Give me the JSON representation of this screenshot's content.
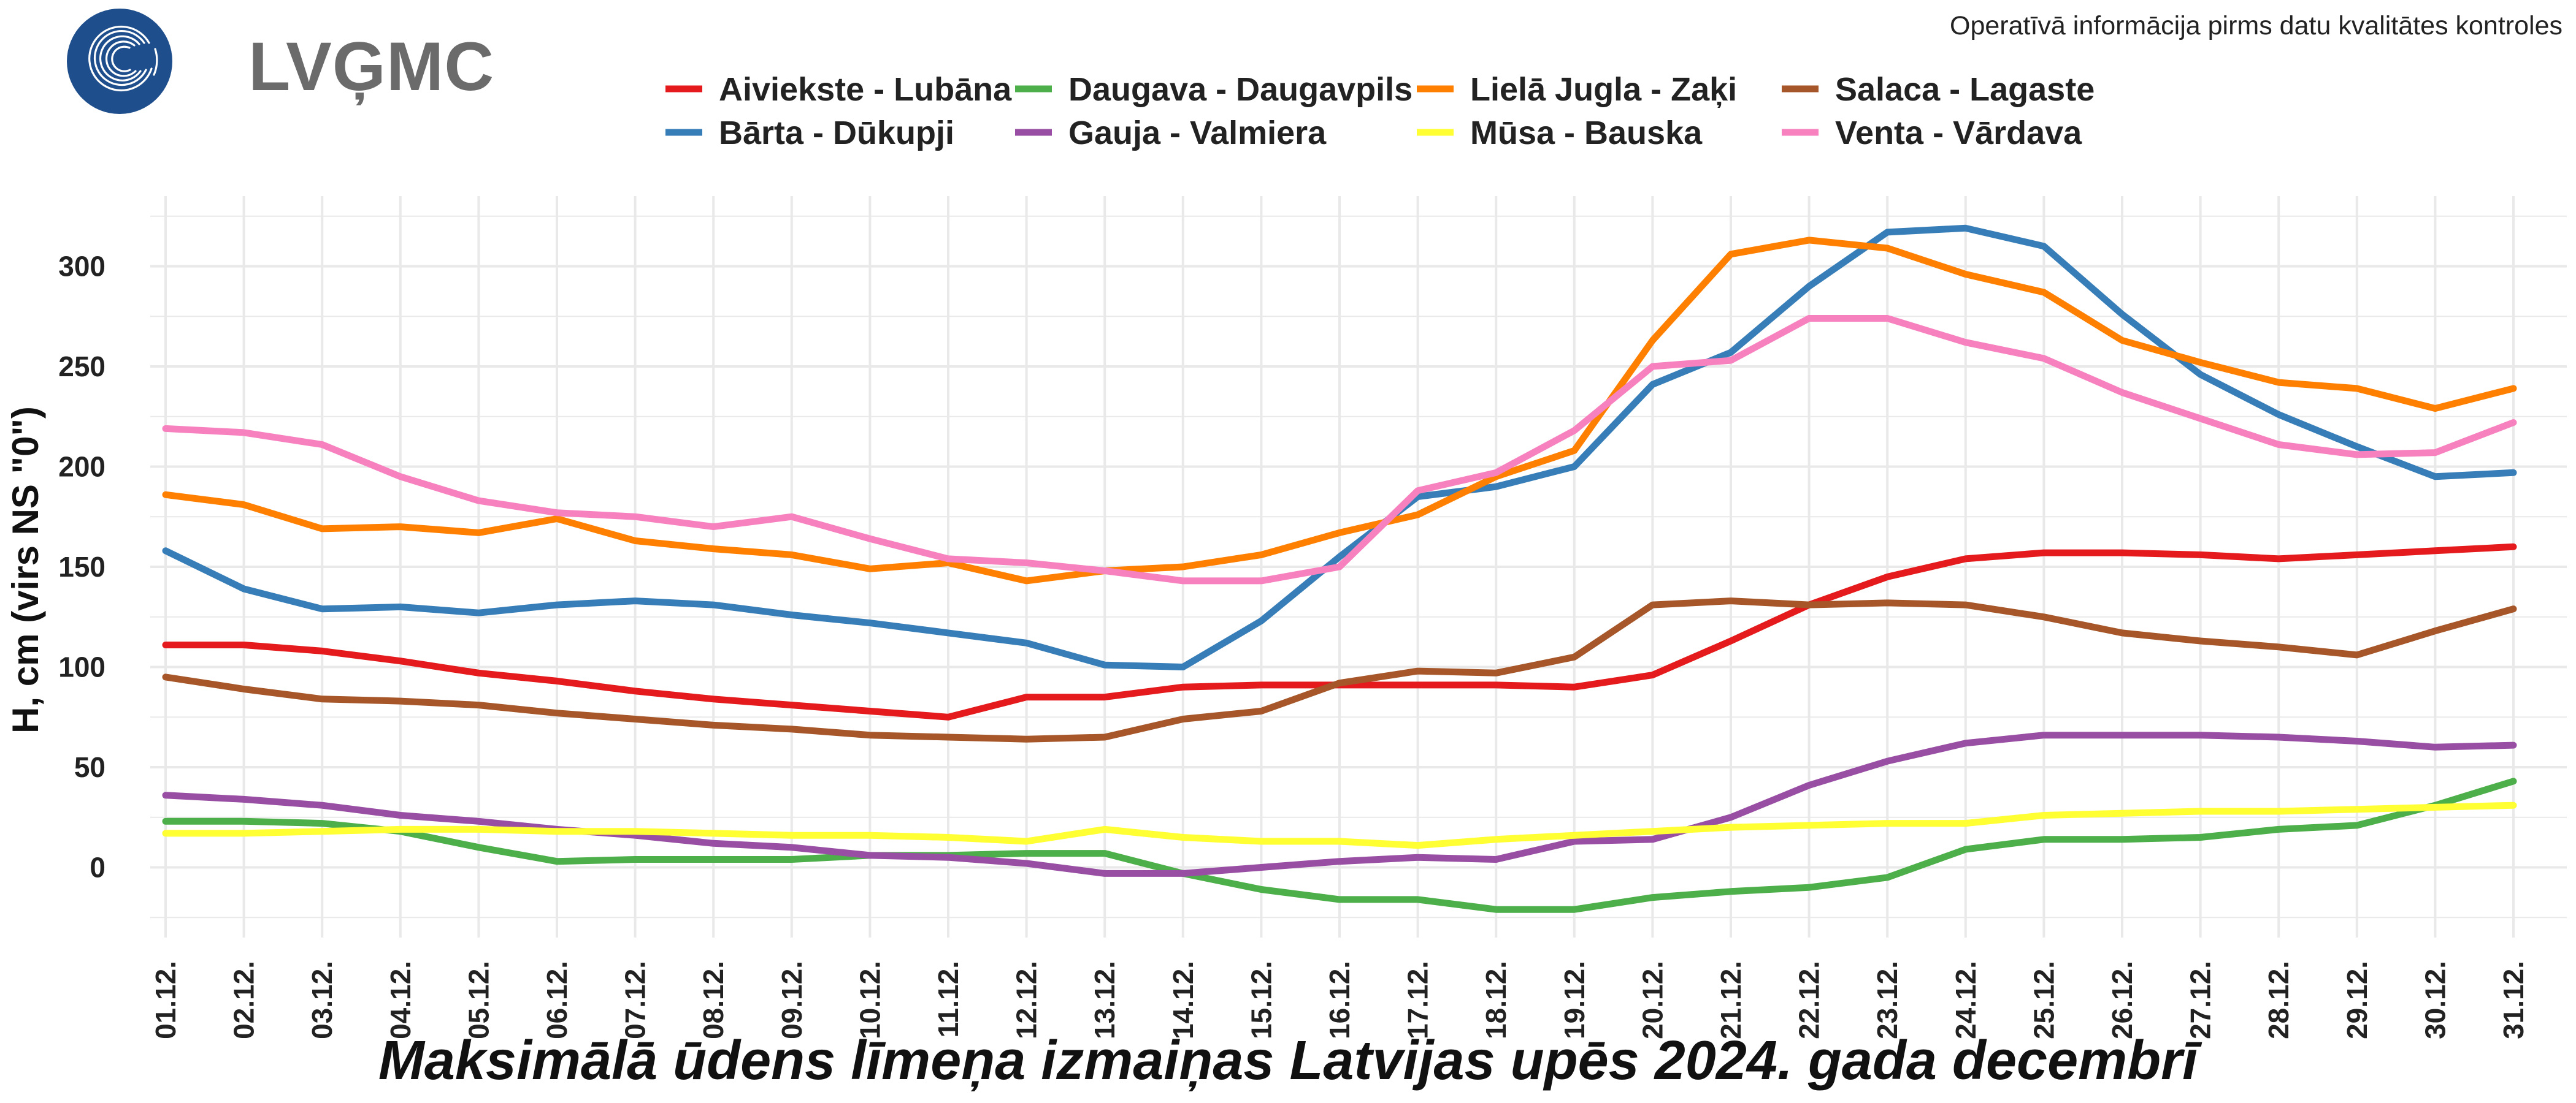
{
  "header": {
    "logo_text": "LVĢMC",
    "disclaimer": "Operatīvā informācija pirms datu kvalitātes kontroles"
  },
  "colors": {
    "logo_blue": "#1f4e8c",
    "grid": "#e9e9e9"
  },
  "chart_data": {
    "type": "line",
    "title": "Maksimālā ūdens līmeņa izmaiņas Latvijas upēs 2024. gada decembrī",
    "xlabel": "",
    "ylabel": "H, cm (virs NS \"0\")",
    "ylim": [
      -35,
      335
    ],
    "yticks": [
      0,
      50,
      100,
      150,
      200,
      250,
      300
    ],
    "grid": true,
    "legend_position": "top-center",
    "categories": [
      "01.12.",
      "02.12.",
      "03.12.",
      "04.12.",
      "05.12.",
      "06.12.",
      "07.12.",
      "08.12.",
      "09.12.",
      "10.12.",
      "11.12.",
      "12.12.",
      "13.12.",
      "14.12.",
      "15.12.",
      "16.12.",
      "17.12.",
      "18.12.",
      "19.12.",
      "20.12.",
      "21.12.",
      "22.12.",
      "23.12.",
      "24.12.",
      "25.12.",
      "26.12.",
      "27.12.",
      "28.12.",
      "29.12.",
      "30.12.",
      "31.12."
    ],
    "series": [
      {
        "name": "Aiviekste - Lubāna",
        "color": "#e41a1c",
        "values": [
          111,
          111,
          108,
          103,
          97,
          93,
          88,
          84,
          81,
          78,
          75,
          85,
          85,
          90,
          91,
          91,
          91,
          91,
          90,
          96,
          113,
          131,
          145,
          154,
          157,
          157,
          156,
          154,
          156,
          158,
          160
        ]
      },
      {
        "name": "Bārta - Dūkupji",
        "color": "#377eb8",
        "values": [
          158,
          139,
          129,
          130,
          127,
          131,
          133,
          131,
          126,
          122,
          117,
          112,
          101,
          100,
          123,
          155,
          185,
          190,
          200,
          241,
          257,
          290,
          317,
          319,
          310,
          276,
          246,
          226,
          210,
          195,
          197
        ]
      },
      {
        "name": "Daugava - Daugavpils",
        "color": "#4daf4a",
        "values": [
          23,
          23,
          22,
          18,
          10,
          3,
          4,
          4,
          4,
          6,
          6,
          7,
          7,
          -3,
          -11,
          -16,
          -16,
          -21,
          -21,
          -15,
          -12,
          -10,
          -5,
          9,
          14,
          14,
          15,
          19,
          21,
          31,
          43
        ]
      },
      {
        "name": "Gauja - Valmiera",
        "color": "#984ea3",
        "values": [
          36,
          34,
          31,
          26,
          23,
          19,
          16,
          12,
          10,
          6,
          5,
          2,
          -3,
          -3,
          0,
          3,
          5,
          4,
          13,
          14,
          25,
          41,
          53,
          62,
          66,
          66,
          66,
          65,
          63,
          60,
          61
        ]
      },
      {
        "name": "Lielā Jugla - Zaķi",
        "color": "#ff7f00",
        "values": [
          186,
          181,
          169,
          170,
          167,
          174,
          163,
          159,
          156,
          149,
          152,
          143,
          148,
          150,
          156,
          167,
          176,
          195,
          208,
          263,
          306,
          313,
          309,
          296,
          287,
          263,
          252,
          242,
          239,
          229,
          239
        ]
      },
      {
        "name": "Mūsa - Bauska",
        "color": "#ffff33",
        "values": [
          17,
          17,
          18,
          19,
          19,
          18,
          18,
          17,
          16,
          16,
          15,
          13,
          19,
          15,
          13,
          13,
          11,
          14,
          16,
          18,
          20,
          21,
          22,
          22,
          26,
          27,
          28,
          28,
          29,
          30,
          31
        ]
      },
      {
        "name": "Salaca - Lagaste",
        "color": "#a65628",
        "values": [
          95,
          89,
          84,
          83,
          81,
          77,
          74,
          71,
          69,
          66,
          65,
          64,
          65,
          74,
          78,
          92,
          98,
          97,
          105,
          131,
          133,
          131,
          132,
          131,
          125,
          117,
          113,
          110,
          106,
          118,
          129
        ]
      },
      {
        "name": "Venta - Vārdava",
        "color": "#f781bf",
        "values": [
          219,
          217,
          211,
          195,
          183,
          177,
          175,
          170,
          175,
          164,
          154,
          152,
          148,
          143,
          143,
          150,
          188,
          197,
          218,
          250,
          253,
          274,
          274,
          262,
          254,
          237,
          224,
          211,
          206,
          207,
          222
        ]
      }
    ]
  }
}
